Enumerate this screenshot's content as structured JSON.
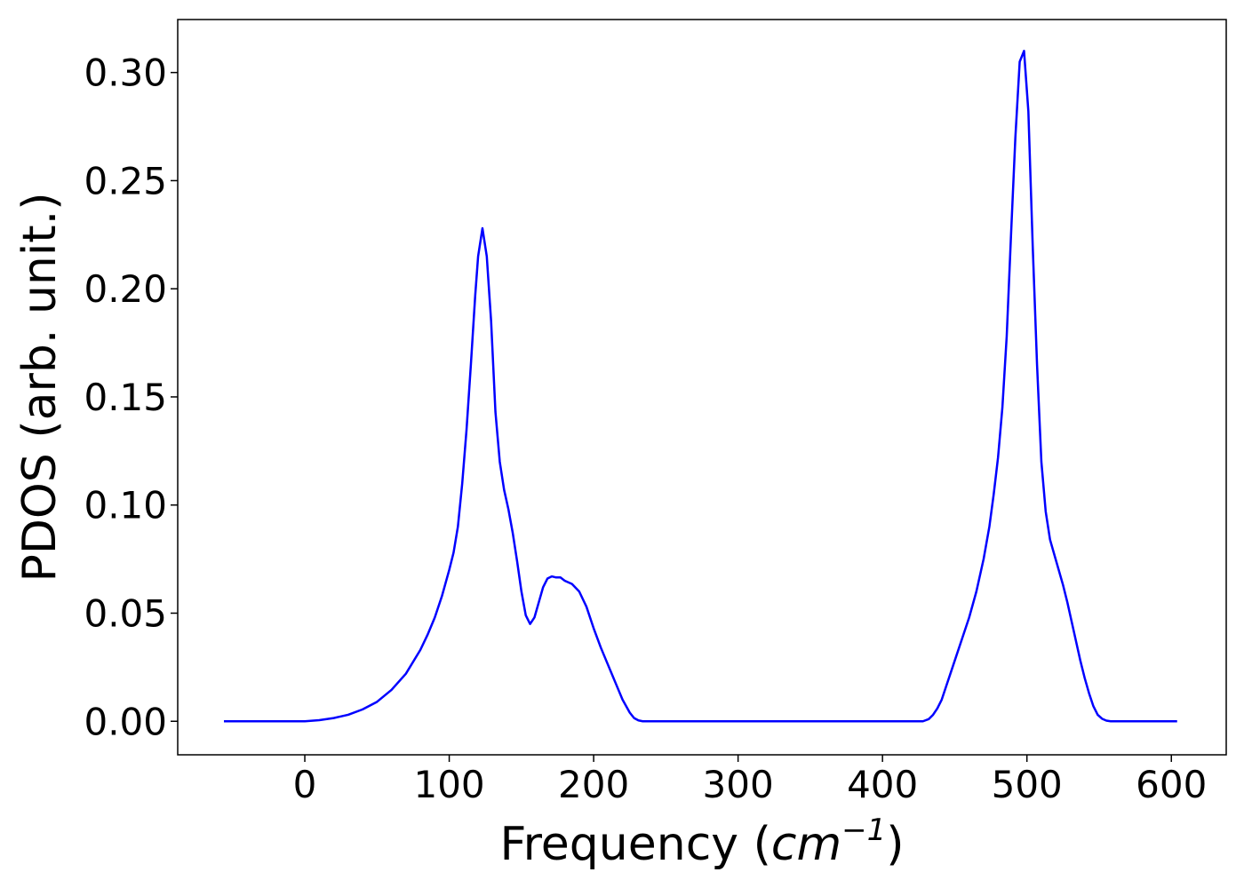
{
  "chart_data": {
    "type": "line",
    "title": "",
    "xlabel": "Frequency (",
    "xlabel_unit_base": "cm",
    "xlabel_unit_exp": "−1",
    "xlabel_close": ")",
    "ylabel": "PDOS (arb. unit.)",
    "xlim": [
      -88,
      638
    ],
    "ylim": [
      -0.0155,
      0.3245
    ],
    "xticks": [
      0,
      100,
      200,
      300,
      400,
      500,
      600
    ],
    "xtick_labels": [
      "0",
      "100",
      "200",
      "300",
      "400",
      "500",
      "600"
    ],
    "yticks": [
      0.0,
      0.05,
      0.1,
      0.15,
      0.2,
      0.25,
      0.3
    ],
    "ytick_labels": [
      "0.00",
      "0.05",
      "0.10",
      "0.15",
      "0.20",
      "0.25",
      "0.30"
    ],
    "grid": false,
    "legend": "none",
    "series": [
      {
        "color": "#0000ff",
        "x": [
          -56,
          -40,
          -20,
          0,
          10,
          20,
          30,
          40,
          50,
          60,
          70,
          80,
          85,
          90,
          95,
          100,
          103,
          106,
          109,
          112,
          115,
          118,
          120,
          123,
          126,
          129,
          132,
          135,
          138,
          141,
          144,
          147,
          150,
          153,
          156,
          159,
          162,
          165,
          168,
          171,
          174,
          177,
          180,
          185,
          190,
          195,
          200,
          205,
          210,
          215,
          220,
          225,
          228,
          231,
          234,
          237,
          240,
          260,
          300,
          350,
          400,
          428,
          432,
          435,
          438,
          441,
          444,
          447,
          450,
          455,
          460,
          465,
          470,
          474,
          477,
          480,
          483,
          486,
          489,
          492,
          495,
          498,
          501,
          504,
          507,
          510,
          513,
          516,
          519,
          522,
          525,
          528,
          531,
          534,
          537,
          540,
          543,
          546,
          549,
          552,
          555,
          558,
          562,
          570,
          590,
          604
        ],
        "y": [
          0.0,
          0.0,
          0.0,
          0.0,
          0.0005,
          0.0015,
          0.003,
          0.0055,
          0.009,
          0.0145,
          0.022,
          0.033,
          0.04,
          0.048,
          0.058,
          0.07,
          0.078,
          0.09,
          0.11,
          0.135,
          0.165,
          0.197,
          0.215,
          0.228,
          0.215,
          0.185,
          0.143,
          0.12,
          0.107,
          0.098,
          0.087,
          0.074,
          0.06,
          0.049,
          0.045,
          0.048,
          0.055,
          0.062,
          0.066,
          0.067,
          0.0665,
          0.0665,
          0.065,
          0.0635,
          0.06,
          0.053,
          0.043,
          0.034,
          0.026,
          0.018,
          0.01,
          0.004,
          0.0015,
          0.0004,
          0.0,
          0.0,
          0.0,
          0.0,
          0.0,
          0.0,
          0.0,
          0.0,
          0.001,
          0.003,
          0.006,
          0.01,
          0.016,
          0.022,
          0.028,
          0.038,
          0.048,
          0.06,
          0.075,
          0.09,
          0.105,
          0.122,
          0.145,
          0.178,
          0.225,
          0.27,
          0.305,
          0.31,
          0.282,
          0.22,
          0.165,
          0.12,
          0.097,
          0.084,
          0.077,
          0.07,
          0.063,
          0.055,
          0.046,
          0.037,
          0.028,
          0.02,
          0.013,
          0.007,
          0.003,
          0.0012,
          0.0003,
          0.0,
          0.0,
          0.0,
          0.0,
          0.0
        ]
      }
    ]
  }
}
